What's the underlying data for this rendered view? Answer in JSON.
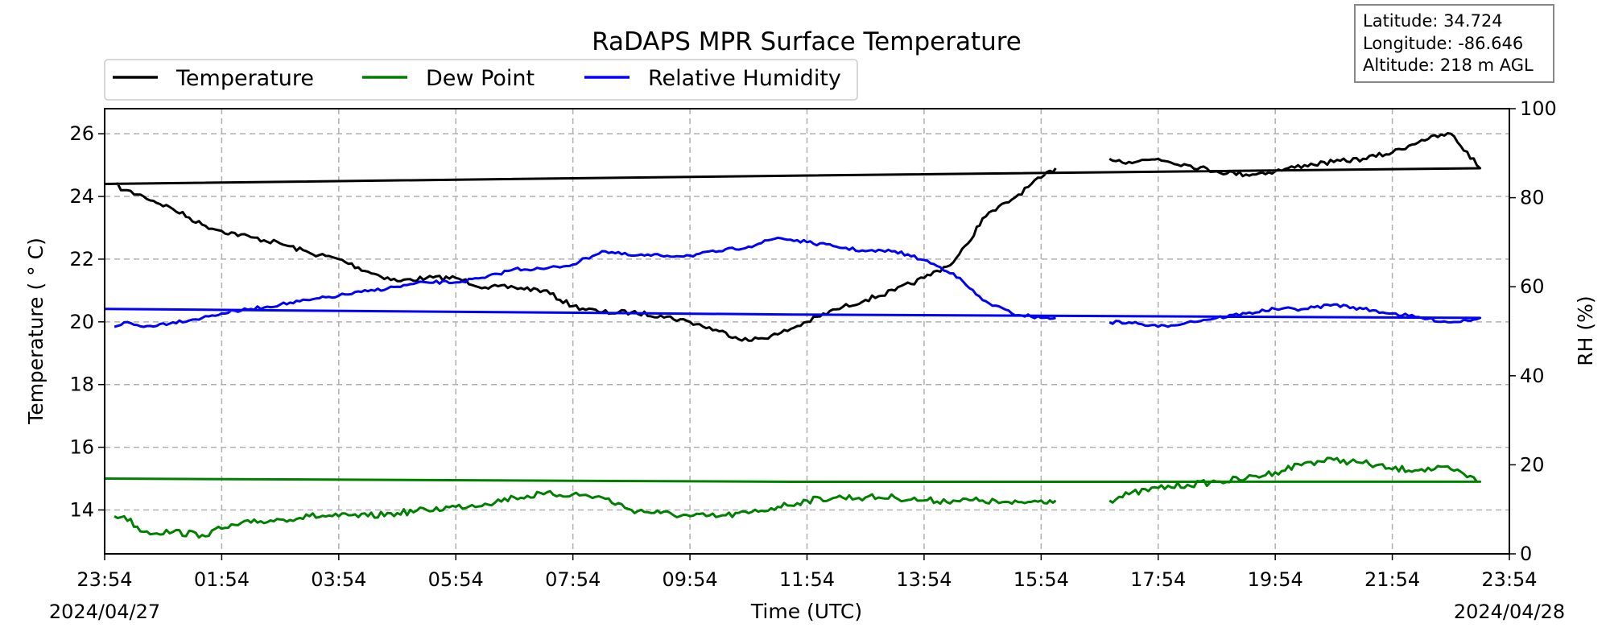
{
  "chart_data": {
    "type": "line",
    "title": "RaDAPS MPR Surface Temperature",
    "xlabel": "Time (UTC)",
    "ylabel_left": "Temperature ( ° C)",
    "ylabel_right": "RH (%)",
    "x_tick_labels": [
      "23:54",
      "01:54",
      "03:54",
      "05:54",
      "07:54",
      "09:54",
      "11:54",
      "13:54",
      "15:54",
      "17:54",
      "19:54",
      "21:54",
      "23:54"
    ],
    "x_range": [
      "2024/04/27 23:54",
      "2024/04/28 23:54"
    ],
    "date_start": "2024/04/27",
    "date_end": "2024/04/28",
    "ylim_left": [
      12.6,
      26.8
    ],
    "yticks_left": [
      14,
      16,
      18,
      20,
      22,
      24,
      26
    ],
    "ylim_right": [
      0,
      100
    ],
    "yticks_right": [
      0,
      20,
      40,
      60,
      80,
      100
    ],
    "grid": true,
    "legend_placement": "top-left above plot",
    "legend": [
      "Temperature",
      "Dew Point",
      "Relative Humidity"
    ],
    "info_box": {
      "latitude": "Latitude: 34.724",
      "longitude": "Longitude: -86.646",
      "altitude": "Altitude: 218 m AGL"
    },
    "series": [
      {
        "name": "Temperature",
        "axis": "left",
        "color": "#000000",
        "x": [
          "00:04",
          "00:14",
          "00:34",
          "01:04",
          "01:34",
          "01:54",
          "02:24",
          "02:54",
          "03:24",
          "03:54",
          "04:24",
          "04:54",
          "05:24",
          "05:54",
          "06:24",
          "06:54",
          "07:24",
          "07:54",
          "08:24",
          "08:54",
          "09:24",
          "09:54",
          "10:24",
          "10:54",
          "11:24",
          "11:54",
          "12:24",
          "12:54",
          "13:24",
          "13:54",
          "14:24",
          "14:39",
          "14:54",
          "15:24",
          "15:54",
          "16:09",
          "16:24",
          "17:04",
          "17:24",
          "17:54",
          "18:24",
          "18:54",
          "19:24",
          "19:54",
          "20:24",
          "20:54",
          "21:24",
          "21:54",
          "22:24",
          "22:54",
          "23:24",
          "23:54"
        ],
        "y": [
          24.4,
          24.2,
          24.0,
          23.6,
          23.1,
          22.9,
          22.7,
          22.5,
          22.2,
          22.0,
          21.6,
          21.3,
          21.4,
          21.4,
          21.1,
          21.1,
          21.0,
          20.5,
          20.3,
          20.3,
          20.2,
          20.0,
          19.7,
          19.4,
          19.6,
          20.0,
          20.4,
          20.7,
          21.0,
          21.4,
          21.9,
          22.5,
          23.3,
          23.9,
          24.6,
          24.9,
          null,
          25.2,
          25.1,
          25.2,
          25.0,
          24.8,
          24.7,
          24.8,
          25.0,
          25.1,
          25.2,
          25.4,
          25.8,
          26.0,
          24.9,
          24.4
        ]
      },
      {
        "name": "Dew Point",
        "axis": "left",
        "color": "#008000",
        "x": [
          "00:04",
          "00:14",
          "00:34",
          "01:04",
          "01:34",
          "01:54",
          "02:24",
          "02:54",
          "03:24",
          "03:54",
          "04:24",
          "04:54",
          "05:24",
          "05:54",
          "06:24",
          "06:54",
          "07:24",
          "07:54",
          "08:24",
          "08:54",
          "09:24",
          "09:54",
          "10:24",
          "10:54",
          "11:24",
          "11:54",
          "12:24",
          "12:54",
          "13:24",
          "13:54",
          "14:24",
          "14:54",
          "15:24",
          "15:54",
          "16:09",
          "16:24",
          "17:04",
          "17:24",
          "17:54",
          "18:24",
          "18:54",
          "19:24",
          "19:54",
          "20:24",
          "20:54",
          "21:24",
          "21:54",
          "22:24",
          "22:54",
          "23:24",
          "23:54"
        ],
        "y": [
          13.8,
          13.8,
          13.3,
          13.3,
          13.2,
          13.4,
          13.6,
          13.7,
          13.8,
          13.8,
          13.8,
          13.9,
          14.0,
          14.1,
          14.2,
          14.4,
          14.5,
          14.5,
          14.4,
          14.0,
          13.9,
          13.8,
          13.8,
          13.9,
          14.1,
          14.3,
          14.4,
          14.4,
          14.4,
          14.3,
          14.3,
          14.3,
          14.2,
          14.3,
          14.3,
          null,
          14.3,
          14.5,
          14.7,
          14.8,
          14.9,
          15.0,
          15.2,
          15.5,
          15.6,
          15.5,
          15.3,
          15.3,
          15.3,
          14.9,
          15.0
        ]
      },
      {
        "name": "Relative Humidity",
        "axis": "right",
        "color": "#0000ff",
        "x": [
          "00:04",
          "00:14",
          "00:34",
          "01:04",
          "01:34",
          "01:54",
          "02:24",
          "02:54",
          "03:24",
          "03:54",
          "04:24",
          "04:54",
          "05:24",
          "05:54",
          "06:24",
          "06:54",
          "07:24",
          "07:54",
          "08:24",
          "08:54",
          "09:24",
          "09:54",
          "10:24",
          "10:54",
          "11:24",
          "11:54",
          "12:24",
          "12:54",
          "13:24",
          "13:54",
          "14:24",
          "14:54",
          "15:24",
          "15:54",
          "16:09",
          "16:24",
          "17:04",
          "17:24",
          "17:54",
          "18:24",
          "18:54",
          "19:24",
          "19:54",
          "20:24",
          "20:54",
          "21:24",
          "21:54",
          "22:24",
          "22:54",
          "23:24",
          "23:54"
        ],
        "y": [
          51,
          52,
          51,
          52,
          53,
          54,
          55,
          56,
          57,
          58,
          59,
          60,
          61,
          61,
          62,
          64,
          64,
          65,
          68,
          67,
          67,
          67,
          68,
          69,
          71,
          70,
          69,
          68,
          68,
          66,
          63,
          57,
          54,
          53,
          53,
          null,
          52,
          52,
          51,
          52,
          53,
          54,
          55,
          55,
          56,
          55,
          54,
          53,
          52,
          53,
          55
        ]
      }
    ]
  }
}
